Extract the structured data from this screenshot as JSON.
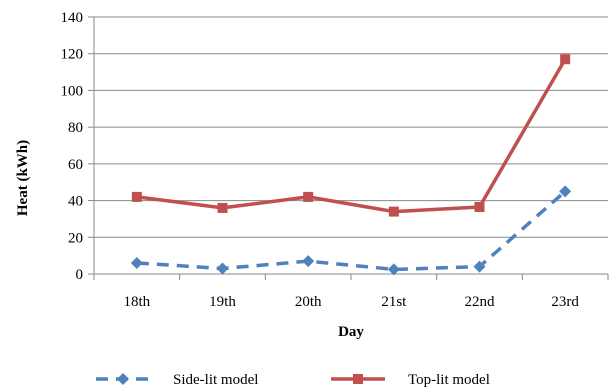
{
  "chart_data": {
    "type": "line",
    "title": "",
    "xlabel": "Day",
    "ylabel": "Heat (kWh)",
    "categories": [
      "18th",
      "19th",
      "20th",
      "21st",
      "22nd",
      "23rd"
    ],
    "ylim": [
      0,
      140
    ],
    "yticks": [
      0,
      20,
      40,
      60,
      80,
      100,
      120,
      140
    ],
    "grid": "horizontal",
    "legend_position": "bottom",
    "series": [
      {
        "name": "Side-lit model",
        "values": [
          6,
          3,
          7,
          2.5,
          4,
          45
        ],
        "color": "#4F81BD",
        "line_style": "dashed",
        "marker": "diamond"
      },
      {
        "name": "Top-lit model",
        "values": [
          42,
          36,
          42,
          34,
          36.5,
          117
        ],
        "color": "#C0504D",
        "line_style": "solid",
        "marker": "square"
      }
    ]
  }
}
